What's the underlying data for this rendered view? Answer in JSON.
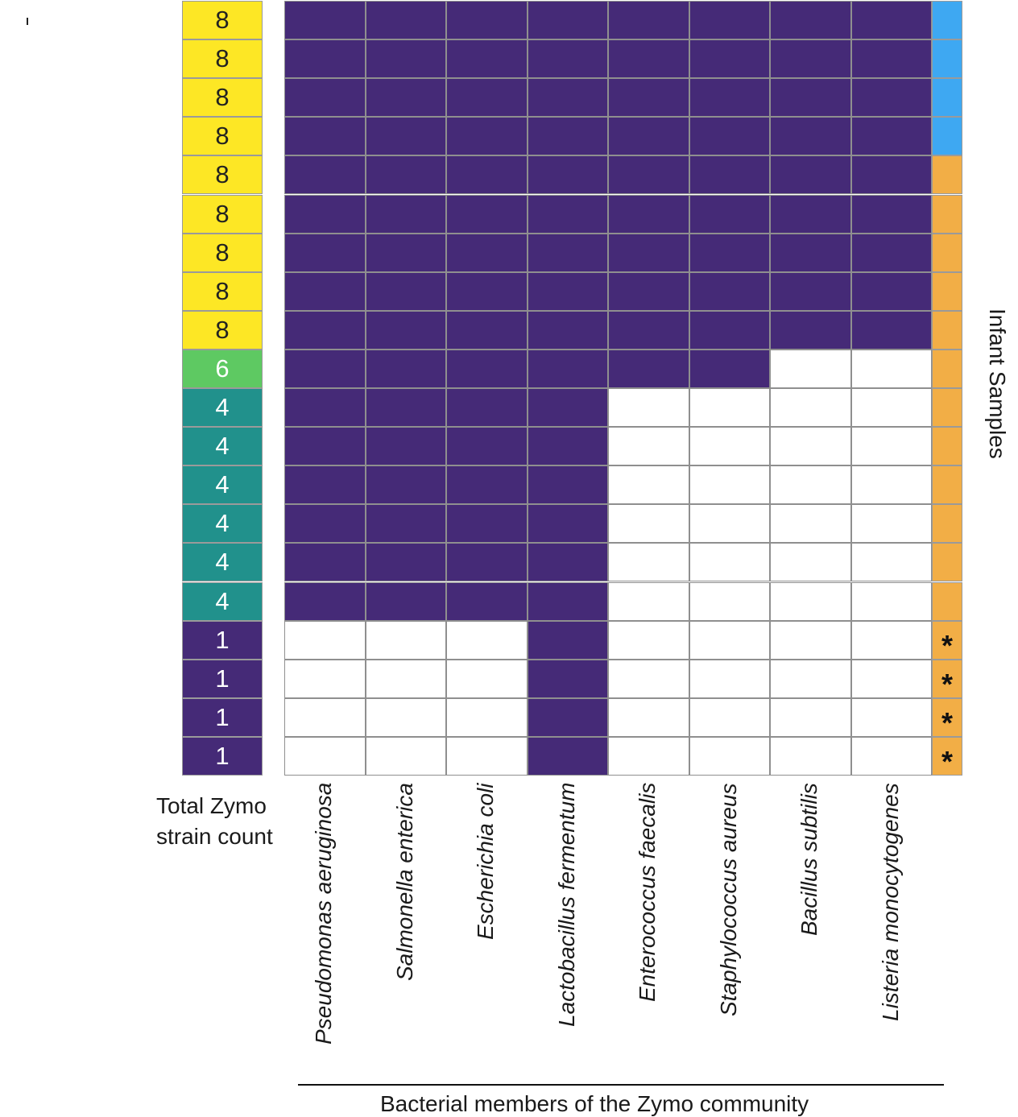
{
  "chart_data": {
    "type": "heatmap",
    "title": "",
    "xlabel": "Bacterial members of the Zymo community",
    "ylabel": "Infant Samples",
    "count_label": "Total Zymo strain count",
    "categories": [
      "Pseudomonas aeruginosa",
      "Salmonella enterica",
      "Escherichia coli",
      "Lactobacillus fermentum",
      "Enterococcus faecalis",
      "Staphylococcus aureus",
      "Bacillus subtilis",
      "Listeria monocytogenes"
    ],
    "rows": [
      {
        "count": 8,
        "present": [
          1,
          1,
          1,
          1,
          1,
          1,
          1,
          1
        ],
        "group": "blue",
        "marker": ""
      },
      {
        "count": 8,
        "present": [
          1,
          1,
          1,
          1,
          1,
          1,
          1,
          1
        ],
        "group": "blue",
        "marker": ""
      },
      {
        "count": 8,
        "present": [
          1,
          1,
          1,
          1,
          1,
          1,
          1,
          1
        ],
        "group": "blue",
        "marker": ""
      },
      {
        "count": 8,
        "present": [
          1,
          1,
          1,
          1,
          1,
          1,
          1,
          1
        ],
        "group": "blue",
        "marker": ""
      },
      {
        "count": 8,
        "present": [
          1,
          1,
          1,
          1,
          1,
          1,
          1,
          1
        ],
        "group": "orange",
        "marker": ""
      },
      {
        "count": 8,
        "present": [
          1,
          1,
          1,
          1,
          1,
          1,
          1,
          1
        ],
        "group": "orange",
        "marker": ""
      },
      {
        "count": 8,
        "present": [
          1,
          1,
          1,
          1,
          1,
          1,
          1,
          1
        ],
        "group": "orange",
        "marker": ""
      },
      {
        "count": 8,
        "present": [
          1,
          1,
          1,
          1,
          1,
          1,
          1,
          1
        ],
        "group": "orange",
        "marker": ""
      },
      {
        "count": 8,
        "present": [
          1,
          1,
          1,
          1,
          1,
          1,
          1,
          1
        ],
        "group": "orange",
        "marker": ""
      },
      {
        "count": 6,
        "present": [
          1,
          1,
          1,
          1,
          1,
          1,
          0,
          0
        ],
        "group": "orange",
        "marker": ""
      },
      {
        "count": 4,
        "present": [
          1,
          1,
          1,
          1,
          0,
          0,
          0,
          0
        ],
        "group": "orange",
        "marker": ""
      },
      {
        "count": 4,
        "present": [
          1,
          1,
          1,
          1,
          0,
          0,
          0,
          0
        ],
        "group": "orange",
        "marker": ""
      },
      {
        "count": 4,
        "present": [
          1,
          1,
          1,
          1,
          0,
          0,
          0,
          0
        ],
        "group": "orange",
        "marker": ""
      },
      {
        "count": 4,
        "present": [
          1,
          1,
          1,
          1,
          0,
          0,
          0,
          0
        ],
        "group": "orange",
        "marker": ""
      },
      {
        "count": 4,
        "present": [
          1,
          1,
          1,
          1,
          0,
          0,
          0,
          0
        ],
        "group": "orange",
        "marker": ""
      },
      {
        "count": 4,
        "present": [
          1,
          1,
          1,
          1,
          0,
          0,
          0,
          0
        ],
        "group": "orange",
        "marker": ""
      },
      {
        "count": 1,
        "present": [
          0,
          0,
          0,
          1,
          0,
          0,
          0,
          0
        ],
        "group": "orange",
        "marker": "*"
      },
      {
        "count": 1,
        "present": [
          0,
          0,
          0,
          1,
          0,
          0,
          0,
          0
        ],
        "group": "orange",
        "marker": "*"
      },
      {
        "count": 1,
        "present": [
          0,
          0,
          0,
          1,
          0,
          0,
          0,
          0
        ],
        "group": "orange",
        "marker": "*"
      },
      {
        "count": 1,
        "present": [
          0,
          0,
          0,
          1,
          0,
          0,
          0,
          0
        ],
        "group": "orange",
        "marker": "*"
      }
    ],
    "colors": {
      "present": "#452a77",
      "absent": "#ffffff",
      "count_8": "#fde725",
      "count_6": "#5ec962",
      "count_4": "#21918c",
      "count_1": "#452a77",
      "group_blue": "#3ea8f2",
      "group_orange": "#f2ae46"
    },
    "grid": true,
    "legend": "none"
  }
}
